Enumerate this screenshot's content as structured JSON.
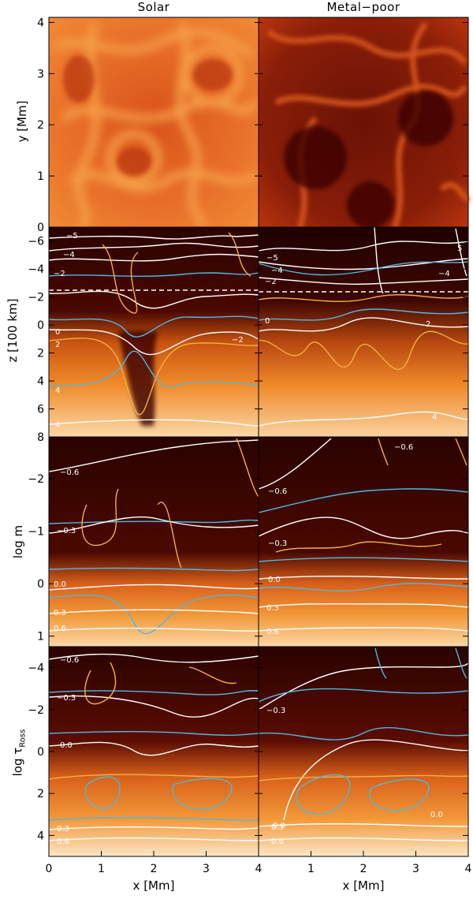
{
  "figure": {
    "column_titles": [
      "Solar",
      "Metal−poor"
    ],
    "xlabel": "x [Mm]"
  },
  "chart_data": [
    {
      "type": "heatmap",
      "row": "intensity",
      "ylabel": "y [Mm]",
      "xlim": [
        0,
        4
      ],
      "ylim": [
        0,
        4.1
      ],
      "x_ticks": [
        0,
        1,
        2,
        3,
        4
      ],
      "y_ticks": [
        0,
        1,
        2,
        3,
        4
      ],
      "panels": [
        "Solar",
        "Metal−poor"
      ]
    },
    {
      "type": "heatmap",
      "row": "geometric-depth",
      "ylabel": "z [100 km]",
      "xlim": [
        0,
        4
      ],
      "ylim": [
        8,
        -7
      ],
      "y_ticks": [
        -6,
        -4,
        -2,
        0,
        2,
        4,
        6,
        8
      ],
      "contour_labels_solar": [
        "−5",
        "−4",
        "−2",
        "0",
        "2",
        "−2",
        "4",
        "4"
      ],
      "contour_labels_metal_poor": [
        "−5",
        "−4",
        "−2",
        "−4",
        "5",
        "0",
        "2",
        "4"
      ]
    },
    {
      "type": "heatmap",
      "row": "column-mass",
      "ylabel": "log m",
      "xlim": [
        0,
        4
      ],
      "ylim": [
        1.2,
        -2.8
      ],
      "y_ticks": [
        -2,
        -1,
        0,
        1
      ],
      "contour_labels_solar": [
        "−0.6",
        "−0.3",
        "0.0",
        "0.3",
        "0.6"
      ],
      "contour_labels_metal_poor": [
        "−0.6",
        "−0.6",
        "−0.3",
        "0.0",
        "0.3",
        "0.6"
      ]
    },
    {
      "type": "heatmap",
      "row": "optical-depth",
      "ylabel_main": "log τ",
      "ylabel_sub": "Ross",
      "xlim": [
        0,
        4
      ],
      "ylim": [
        5,
        -5
      ],
      "y_ticks": [
        -4,
        -2,
        0,
        2,
        4
      ],
      "contour_labels_solar": [
        "−0.6",
        "−0.3",
        "0.0",
        "0.3",
        "0.6"
      ],
      "contour_labels_metal_poor": [
        "−0.3",
        "0.0",
        "0.0",
        "0.3",
        "0.6"
      ]
    }
  ]
}
